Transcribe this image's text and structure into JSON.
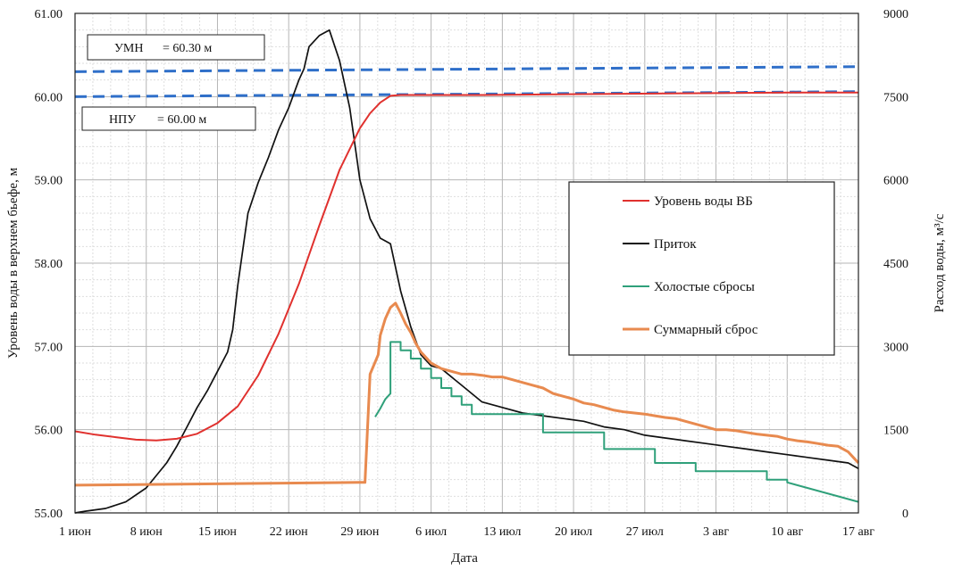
{
  "chart_data": {
    "type": "line",
    "xlabel": "Дата",
    "ylabel_left": "Уровень воды в верхнем бьефе, м",
    "ylabel_right": "Расход воды, м³/с",
    "x_ticks": [
      "1 июн",
      "8 июн",
      "15 июн",
      "22 июн",
      "29 июн",
      "6 июл",
      "13 июл",
      "20 июл",
      "27 июл",
      "3 авг",
      "10 авг",
      "17 авг"
    ],
    "x_range_days": [
      0,
      77
    ],
    "y_left_ticks": [
      "55.00",
      "56.00",
      "57.00",
      "58.00",
      "59.00",
      "60.00",
      "61.00"
    ],
    "y_left_range": [
      55,
      61
    ],
    "y_right_ticks": [
      "0",
      "1500",
      "3000",
      "4500",
      "6000",
      "7500",
      "9000"
    ],
    "y_right_range": [
      0,
      9000
    ],
    "grid": true,
    "legend_position": "center-right",
    "reference_lines": [
      {
        "label_name": "УМН",
        "label_value": "= 60.30 м",
        "y_start": 60.3,
        "y_end": 60.36,
        "color": "#2f6fc9"
      },
      {
        "label_name": "НПУ",
        "label_value": "= 60.00 м",
        "y_start": 60.0,
        "y_end": 60.06,
        "color": "#2f6fc9"
      }
    ],
    "series": [
      {
        "name": "Уровень воды ВБ",
        "axis": "left",
        "color": "#e0312e",
        "x": [
          0,
          2,
          4,
          6,
          8,
          10,
          12,
          14,
          16,
          18,
          20,
          22,
          24,
          26,
          28,
          29,
          30,
          31,
          32,
          36,
          40,
          50,
          60,
          70,
          77
        ],
        "y": [
          55.98,
          55.94,
          55.91,
          55.88,
          55.87,
          55.89,
          55.95,
          56.08,
          56.28,
          56.65,
          57.15,
          57.75,
          58.45,
          59.12,
          59.62,
          59.8,
          59.93,
          60.01,
          60.02,
          60.02,
          60.02,
          60.03,
          60.04,
          60.05,
          60.05
        ]
      },
      {
        "name": "Приток",
        "axis": "right",
        "color": "#111111",
        "x": [
          0,
          1,
          3,
          5,
          7,
          9,
          10,
          11,
          12,
          13,
          14,
          15,
          15.5,
          16,
          17,
          18,
          19,
          20,
          21,
          22,
          22.5,
          23,
          24,
          25,
          26,
          27,
          28,
          29,
          30,
          31,
          32,
          33,
          34,
          35,
          36,
          38,
          40,
          42,
          44,
          46,
          48,
          50,
          52,
          54,
          56,
          58,
          60,
          62,
          64,
          66,
          68,
          70,
          72,
          74,
          76,
          77
        ],
        "y": [
          0,
          30,
          80,
          200,
          450,
          900,
          1200,
          1550,
          1900,
          2200,
          2550,
          2900,
          3300,
          4100,
          5400,
          5950,
          6400,
          6900,
          7300,
          7800,
          8000,
          8400,
          8600,
          8700,
          8150,
          7300,
          6000,
          5300,
          4950,
          4850,
          4000,
          3350,
          2850,
          2650,
          2600,
          2300,
          2000,
          1900,
          1800,
          1750,
          1700,
          1650,
          1550,
          1500,
          1400,
          1350,
          1300,
          1250,
          1200,
          1150,
          1100,
          1050,
          1000,
          950,
          900,
          800
        ]
      },
      {
        "name": "Холостые сбросы",
        "axis": "right",
        "color": "#2fa07a",
        "x": [
          29.5,
          30,
          30.5,
          31,
          31,
          32,
          32,
          33,
          33,
          34,
          34,
          35,
          35,
          36,
          36,
          37,
          37,
          38,
          38,
          39,
          39,
          46,
          46,
          52,
          52,
          57,
          57,
          61,
          61,
          68,
          68,
          70,
          70,
          77
        ],
        "y": [
          1730,
          1880,
          2050,
          2150,
          3080,
          3080,
          2930,
          2930,
          2780,
          2780,
          2600,
          2600,
          2430,
          2430,
          2250,
          2250,
          2100,
          2100,
          1950,
          1950,
          1780,
          1780,
          1450,
          1450,
          1150,
          1150,
          900,
          900,
          750,
          750,
          600,
          600,
          550,
          200
        ]
      },
      {
        "name": "Суммарный сброс",
        "axis": "right",
        "color": "#e88a4f",
        "x": [
          0,
          28,
          28.5,
          29,
          29.8,
          30,
          30.5,
          31,
          31.5,
          32,
          32.5,
          33,
          33.5,
          34,
          34.5,
          35,
          36,
          37,
          38,
          39,
          40,
          41,
          42,
          43,
          44,
          45,
          46,
          47,
          48,
          49,
          50,
          51,
          52,
          53,
          54,
          55,
          56,
          57,
          58,
          59,
          60,
          61,
          62,
          63,
          64,
          65,
          66,
          67,
          68,
          69,
          70,
          71,
          72,
          73,
          74,
          75,
          76,
          76.5,
          77
        ],
        "y": [
          500,
          550,
          550,
          2500,
          2850,
          3200,
          3500,
          3700,
          3780,
          3600,
          3400,
          3250,
          3050,
          2900,
          2800,
          2700,
          2600,
          2550,
          2500,
          2500,
          2480,
          2450,
          2450,
          2400,
          2350,
          2300,
          2250,
          2150,
          2100,
          2050,
          1980,
          1950,
          1900,
          1850,
          1820,
          1800,
          1780,
          1750,
          1720,
          1700,
          1650,
          1600,
          1550,
          1500,
          1500,
          1480,
          1450,
          1420,
          1400,
          1380,
          1330,
          1300,
          1280,
          1250,
          1220,
          1200,
          1100,
          1000,
          900
        ]
      }
    ]
  }
}
